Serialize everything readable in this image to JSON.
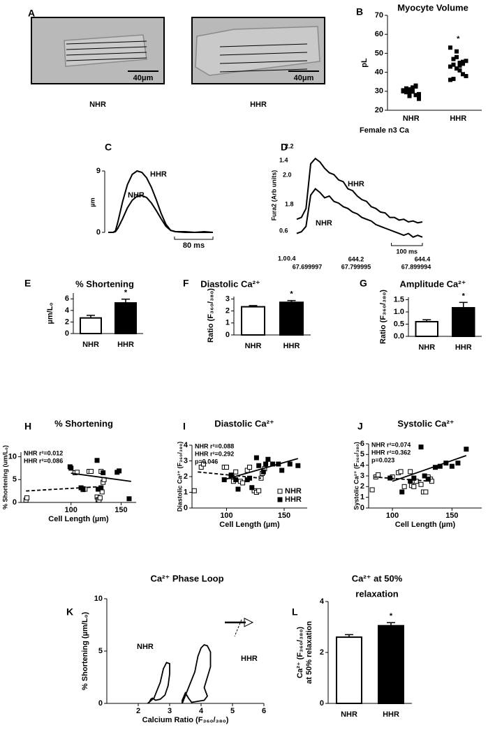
{
  "chart_data": [
    {
      "panel": "A",
      "type": "image",
      "images": [
        {
          "label": "NHR",
          "scale_bar": "40μm"
        },
        {
          "label": "HHR",
          "scale_bar": "40μm"
        }
      ]
    },
    {
      "panel": "B",
      "type": "dot",
      "title": "Myocyte Volume",
      "ylabel": "pL",
      "categories": [
        "NHR",
        "HHR"
      ],
      "values": [
        [
          30.5,
          29.5,
          31,
          32,
          28,
          27,
          30,
          31.5,
          29,
          30,
          33,
          28.5,
          30.5,
          31,
          27.5,
          29.8,
          32.5,
          26
        ],
        [
          53,
          47,
          51,
          45,
          44.5,
          46,
          43,
          44,
          42,
          41,
          39,
          38,
          36,
          36.5,
          48,
          43.5,
          45.5
        ]
      ],
      "color": "#000000",
      "ylim": [
        20,
        70
      ],
      "yticks": [
        20,
        30,
        40,
        50,
        60,
        70
      ],
      "significance": "*",
      "caption": "Female n3 Ca"
    },
    {
      "panel": "C",
      "type": "trace",
      "ylabel": "µm",
      "x": [
        0,
        10,
        15,
        20,
        30,
        40,
        50,
        60,
        70,
        80,
        90,
        100,
        110,
        120,
        130,
        140,
        160,
        180,
        200,
        218
      ],
      "series": [
        {
          "name": "HHR",
          "color": "#000000",
          "values": [
            0,
            0,
            0.2,
            1.5,
            4.5,
            7,
            8.5,
            9,
            8.8,
            8,
            6.6,
            4.8,
            2.8,
            1.2,
            0.3,
            0.1,
            0.1,
            0,
            0.1,
            0
          ]
        },
        {
          "name": "NHR",
          "color": "#000000",
          "values": [
            0,
            0,
            0.1,
            0.6,
            2,
            3.6,
            4.7,
            5.3,
            5.4,
            5.1,
            4.3,
            3.2,
            2,
            0.9,
            0.3,
            0.1,
            0,
            0,
            0,
            0
          ]
        }
      ],
      "xlim": [
        0,
        218
      ],
      "ylim": [
        0,
        9
      ],
      "yticks": [
        0,
        9
      ],
      "scale_bar": {
        "value": 80,
        "label": "80 ms"
      }
    },
    {
      "panel": "D",
      "type": "trace",
      "ylabel": "Fura2 (Arb units)",
      "y_labels": [
        "2.2",
        "1.4",
        "2.0",
        "1.8",
        "0.6",
        "1.0",
        "0.4"
      ],
      "x_labels": [
        "67.699997",
        "644.2",
        "67.799995",
        "644.4",
        "67.899994"
      ],
      "x": [
        0,
        15,
        30,
        45,
        60,
        75,
        90,
        105,
        120,
        135,
        150,
        165,
        180,
        195,
        210,
        225,
        240,
        255,
        270,
        285,
        300,
        315,
        330,
        345,
        360,
        375,
        390,
        405
      ],
      "series": [
        {
          "name": "HHR",
          "color": "#000000",
          "values": [
            0.78,
            0.8,
            0.9,
            1.4,
            1.46,
            1.42,
            1.35,
            1.3,
            1.28,
            1.22,
            1.2,
            1.12,
            1.1,
            1.04,
            1,
            0.98,
            0.92,
            0.9,
            0.86,
            0.85,
            0.8,
            0.8,
            0.77,
            0.78,
            0.75,
            0.76,
            0.74,
            0.75
          ]
        },
        {
          "name": "NHR",
          "color": "#000000",
          "values": [
            0.62,
            0.64,
            0.7,
            1.05,
            1.12,
            1.08,
            1.02,
            1.04,
            0.98,
            0.96,
            0.92,
            0.9,
            0.86,
            0.84,
            0.8,
            0.78,
            0.76,
            0.72,
            0.7,
            0.68,
            0.66,
            0.64,
            0.62,
            0.6,
            0.62,
            0.58,
            0.6,
            0.58
          ]
        }
      ],
      "xlim": [
        0,
        405
      ],
      "ylim": [
        0.5,
        1.5
      ],
      "scale_bar": {
        "value": 100,
        "label": "100 ms"
      }
    },
    {
      "panel": "E",
      "type": "bar",
      "title": "% Shortening",
      "ylabel": "µm/L₀",
      "categories": [
        "NHR",
        "HHR"
      ],
      "values": [
        2.7,
        5.3
      ],
      "errors": [
        0.45,
        0.65
      ],
      "colors": [
        "#ffffff",
        "#000000"
      ],
      "ylim": [
        0,
        7
      ],
      "yticks": [
        0,
        2,
        4,
        6
      ],
      "significance": "*"
    },
    {
      "panel": "F",
      "type": "bar",
      "title": "Diastolic Ca²⁺",
      "ylabel": "Ratio (F₃₆₀/₃₈₀)",
      "categories": [
        "NHR",
        "HHR"
      ],
      "values": [
        2.35,
        2.72
      ],
      "errors": [
        0.1,
        0.15
      ],
      "colors": [
        "#ffffff",
        "#000000"
      ],
      "ylim": [
        0,
        3.2
      ],
      "yticks": [
        0,
        1,
        2,
        3
      ],
      "significance": "*"
    },
    {
      "panel": "G",
      "type": "bar",
      "title": "Amplitude Ca²⁺",
      "ylabel": "Ratio (F₃₆₀/₃₈₀)",
      "categories": [
        "NHR",
        "HHR"
      ],
      "values": [
        0.6,
        1.17
      ],
      "errors": [
        0.08,
        0.22
      ],
      "colors": [
        "#ffffff",
        "#000000"
      ],
      "ylim": [
        0,
        1.6
      ],
      "yticks": [
        {
          "value": 0,
          "label": "0.0"
        },
        0.5,
        {
          "value": 1,
          "label": "1.0"
        },
        1.5
      ],
      "significance": "*"
    },
    {
      "panel": "H",
      "type": "scatter",
      "title": "% Shortening",
      "ylabel": "% Shortening (um/L₀)",
      "xlabel": "Cell Length (µm)",
      "annotations": [
        "NHR r²=0.012",
        "HHR r²=0.086"
      ],
      "series": [
        {
          "name": "NHR",
          "color": "#000000",
          "fill": "#ffffff",
          "dash": true,
          "x": [
            55,
            56,
            104,
            106,
            112,
            114,
            118,
            120,
            126,
            127,
            128,
            129,
            130,
            131,
            132,
            133
          ],
          "values": [
            0.5,
            1,
            6.5,
            6.6,
            2.8,
            2.9,
            6.8,
            6.8,
            1.2,
            0.6,
            0.5,
            1,
            6.8,
            2.3,
            4.4,
            5
          ],
          "fit_x": [
            55,
            133
          ],
          "fit_y": [
            2.5,
            3.5
          ]
        },
        {
          "name": "HHR",
          "color": "#000000",
          "fill": "#000000",
          "dash": false,
          "x": [
            99,
            100,
            110,
            112,
            126,
            127,
            130,
            132,
            146,
            148,
            158
          ],
          "values": [
            7.8,
            7.5,
            3.2,
            3,
            9.2,
            2.9,
            3.2,
            6.5,
            6.6,
            6.9,
            0.8
          ],
          "fit_x": [
            100,
            160
          ],
          "fit_y": [
            6.4,
            4.6
          ]
        }
      ],
      "xlim": [
        50,
        165
      ],
      "xticks": [
        100,
        150
      ],
      "ylim": [
        0,
        11
      ],
      "yticks": [
        0,
        5,
        10
      ]
    },
    {
      "panel": "I",
      "type": "scatter",
      "title": "Diastolic Ca²⁺",
      "ylabel": "Diastolic Ca²⁺ (F₃₆₀/₃₈₀)",
      "xlabel": "Cell Length (µm)",
      "annotations": [
        "NHR r²=0.088",
        "HHR r²=0.292",
        "p=0.046"
      ],
      "legend": "lower right",
      "series": [
        {
          "name": "NHR",
          "color": "#000000",
          "fill": "#ffffff",
          "dash": true,
          "x": [
            72,
            78,
            80,
            98,
            100,
            104,
            106,
            108,
            112,
            114,
            118,
            120,
            124,
            126,
            128,
            130,
            131,
            133
          ],
          "values": [
            1.1,
            2.6,
            2.8,
            2.6,
            2.6,
            2,
            1.7,
            2.3,
            1.7,
            1.6,
            2.4,
            2.6,
            1.1,
            1,
            1.1,
            1.9,
            2.2,
            2.5
          ],
          "fit_x": [
            75,
            130
          ],
          "fit_y": [
            2.3,
            1.9
          ]
        },
        {
          "name": "HHR",
          "color": "#000000",
          "fill": "#000000",
          "dash": false,
          "x": [
            98,
            104,
            108,
            110,
            118,
            120,
            122,
            126,
            128,
            132,
            134,
            136,
            140,
            145,
            148,
            155,
            162
          ],
          "values": [
            1.8,
            2.1,
            1.8,
            1.2,
            1.8,
            1.9,
            1.3,
            3.2,
            2.7,
            2.3,
            2.8,
            3.1,
            2.8,
            2.8,
            2.4,
            2.8,
            2.7
          ],
          "fit_x": [
            100,
            162
          ],
          "fit_y": [
            1.85,
            3.15
          ]
        }
      ],
      "xlim": [
        70,
        170
      ],
      "xticks": [
        100,
        150
      ],
      "ylim": [
        0,
        4
      ],
      "yticks": [
        0,
        1,
        2,
        3,
        4
      ]
    },
    {
      "panel": "J",
      "type": "scatter",
      "title": "Systolic Ca²⁺",
      "ylabel": "Systolic Ca²⁺ (F₃₆₀/₃₈₀)",
      "xlabel": "Cell Length (µm)",
      "annotations": [
        "NHR r²=0.074",
        "HHR r²=0.362",
        "p=0.023"
      ],
      "series": [
        {
          "name": "NHR",
          "color": "#000000",
          "fill": "#ffffff",
          "dash": true,
          "x": [
            83,
            86,
            88,
            100,
            105,
            107,
            110,
            115,
            116,
            118,
            120,
            124,
            126,
            128,
            130,
            132,
            133
          ],
          "values": [
            1.7,
            2.9,
            3.1,
            2.9,
            3.3,
            3.4,
            2,
            3.4,
            2.1,
            2,
            2.5,
            2.2,
            1.5,
            1.5,
            2.9,
            2.7,
            2.5
          ],
          "fit_x": [
            84,
            132
          ],
          "fit_y": [
            2.9,
            2.5
          ]
        },
        {
          "name": "HHR",
          "color": "#000000",
          "fill": "#000000",
          "dash": false,
          "x": [
            98,
            108,
            115,
            118,
            124,
            127,
            130,
            136,
            140,
            145,
            150,
            155,
            162
          ],
          "values": [
            2.8,
            1.5,
            2.5,
            2.8,
            5.7,
            3,
            2.7,
            3.8,
            3.9,
            4.2,
            3.9,
            4.2,
            5.5
          ],
          "fit_x": [
            100,
            162
          ],
          "fit_y": [
            2.5,
            4.9
          ]
        }
      ],
      "xlim": [
        80,
        175
      ],
      "xticks": [
        100,
        150
      ],
      "ylim": [
        0,
        6
      ],
      "yticks": [
        0,
        1,
        2,
        3,
        4,
        5,
        6
      ]
    },
    {
      "panel": "K",
      "type": "loop",
      "title": "Ca²⁺ Phase Loop",
      "ylabel": "% Shortening (µm/L₀)",
      "xlabel": "Calcium Ratio (F₃₆₀/₃₈₀)",
      "series": [
        {
          "name": "NHR",
          "color": "#000000",
          "x": [
            2.3,
            2.5,
            2.7,
            2.8,
            2.9,
            3,
            3,
            2.95,
            2.85,
            2.7,
            2.55,
            2.45,
            2.4,
            2.35,
            2.3
          ],
          "values": [
            0,
            0.5,
            2,
            3.3,
            3.9,
            3.8,
            2.8,
            1.7,
            0.8,
            0.4,
            0.3,
            0.5,
            0.4,
            0.1,
            0
          ]
        },
        {
          "name": "HHR",
          "color": "#000000",
          "x": [
            3.4,
            3.6,
            3.8,
            3.9,
            4,
            4.1,
            4.2,
            4.3,
            4.3,
            4.2,
            4.1,
            4.2,
            4.1,
            3.9,
            3.7,
            3.6,
            3.5,
            3.4,
            3.4
          ],
          "values": [
            0,
            1.5,
            3,
            4.5,
            5.3,
            5.6,
            5.5,
            4.9,
            3.5,
            2.5,
            1.5,
            0.7,
            0.3,
            0.2,
            0.1,
            0.5,
            1,
            0.3,
            0
          ]
        }
      ],
      "xlim": [
        1,
        6
      ],
      "xticks": [
        2,
        3,
        4,
        5,
        6
      ],
      "ylim": [
        0,
        10
      ],
      "yticks": [
        0,
        5,
        10
      ]
    },
    {
      "panel": "L",
      "type": "bar",
      "title": [
        "Ca²⁺ at 50%",
        "relaxation"
      ],
      "ylabel": [
        "Ca²⁺ (F₃₆₀/₃₈₀)",
        "at 50% relaxation"
      ],
      "categories": [
        "NHR",
        "HHR"
      ],
      "values": [
        2.6,
        3.05
      ],
      "errors": [
        0.1,
        0.12
      ],
      "colors": [
        "#ffffff",
        "#000000"
      ],
      "ylim": [
        0,
        4
      ],
      "yticks": [
        0,
        2,
        4
      ],
      "significance": "*"
    }
  ]
}
